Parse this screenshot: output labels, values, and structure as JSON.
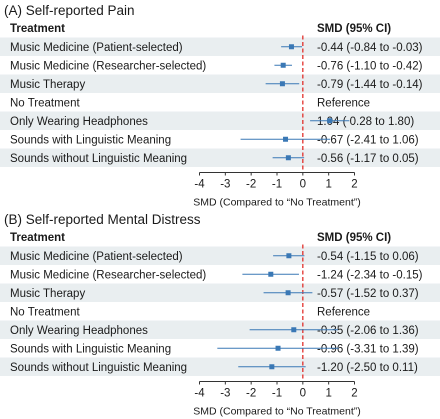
{
  "chart_data": [
    {
      "type": "forest",
      "title": "(A) Self-reported Pain",
      "col_treatment": "Treatment",
      "col_smd": "SMD (95% CI)",
      "xlabel": "SMD (Compared to “No Treatment”)",
      "xlim": [
        -4,
        2
      ],
      "xticks": [
        "-4",
        "-3",
        "-2",
        "-1",
        "0",
        "1",
        "2"
      ],
      "reference_line": 0,
      "rows": [
        {
          "label": "Music Medicine (Patient-selected)",
          "smd": -0.44,
          "lo": -0.84,
          "hi": -0.03,
          "text": "-0.44 (-0.84 to -0.03)",
          "shaded": true
        },
        {
          "label": "Music Medicine (Researcher-selected)",
          "smd": -0.76,
          "lo": -1.1,
          "hi": -0.42,
          "text": "-0.76 (-1.10 to -0.42)",
          "shaded": false
        },
        {
          "label": "Music Therapy",
          "smd": -0.79,
          "lo": -1.44,
          "hi": -0.14,
          "text": "-0.79 (-1.44 to -0.14)",
          "shaded": true
        },
        {
          "label": "No Treatment",
          "smd": null,
          "lo": null,
          "hi": null,
          "text": "Reference",
          "shaded": false
        },
        {
          "label": "Only Wearing Headphones",
          "smd": 1.04,
          "lo": 0.28,
          "hi": 1.8,
          "text": "1.04 ( 0.28 to  1.80)",
          "shaded": true
        },
        {
          "label": "Sounds with Linguistic Meaning",
          "smd": -0.67,
          "lo": -2.41,
          "hi": 1.06,
          "text": "-0.67 (-2.41 to  1.06)",
          "shaded": false
        },
        {
          "label": "Sounds without Linguistic Meaning",
          "smd": -0.56,
          "lo": -1.17,
          "hi": 0.05,
          "text": "-0.56 (-1.17 to  0.05)",
          "shaded": true
        }
      ]
    },
    {
      "type": "forest",
      "title": "(B) Self-reported Mental Distress",
      "col_treatment": "Treatment",
      "col_smd": "SMD (95% CI)",
      "xlabel": "SMD (Compared to “No Treatment”)",
      "xlim": [
        -4,
        2
      ],
      "xticks": [
        "-4",
        "-3",
        "-2",
        "-1",
        "0",
        "1",
        "2"
      ],
      "reference_line": 0,
      "rows": [
        {
          "label": "Music Medicine (Patient-selected)",
          "smd": -0.54,
          "lo": -1.15,
          "hi": 0.06,
          "text": "-0.54 (-1.15 to  0.06)",
          "shaded": true
        },
        {
          "label": "Music Medicine (Researcher-selected)",
          "smd": -1.24,
          "lo": -2.34,
          "hi": -0.15,
          "text": "-1.24 (-2.34 to -0.15)",
          "shaded": false
        },
        {
          "label": "Music Therapy",
          "smd": -0.57,
          "lo": -1.52,
          "hi": 0.37,
          "text": "-0.57 (-1.52 to  0.37)",
          "shaded": true
        },
        {
          "label": "No Treatment",
          "smd": null,
          "lo": null,
          "hi": null,
          "text": "Reference",
          "shaded": false
        },
        {
          "label": "Only Wearing Headphones",
          "smd": -0.35,
          "lo": -2.06,
          "hi": 1.36,
          "text": "-0.35 (-2.06 to  1.36)",
          "shaded": true
        },
        {
          "label": "Sounds with Linguistic Meaning",
          "smd": -0.96,
          "lo": -3.31,
          "hi": 1.39,
          "text": "-0.96 (-3.31 to  1.39)",
          "shaded": false
        },
        {
          "label": "Sounds without Linguistic Meaning",
          "smd": -1.2,
          "lo": -2.5,
          "hi": 0.11,
          "text": "-1.20 (-2.50 to  0.11)",
          "shaded": true
        }
      ]
    }
  ],
  "colors": {
    "row_shade": "#e9eef0",
    "point": "#3a78b5",
    "ci_line": "#3a78b5",
    "reference_line": "#e0201b",
    "text": "#1a1a1a"
  }
}
